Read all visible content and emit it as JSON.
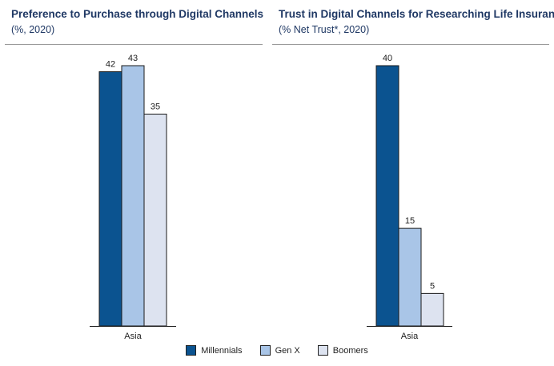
{
  "colors": {
    "millennials": "#0b5390",
    "gen_x": "#a9c5e7",
    "boomers": "#dde3f0",
    "title": "#1f3864"
  },
  "legend": {
    "items": [
      {
        "label": "Millennials",
        "color": "#0b5390"
      },
      {
        "label": "Gen X",
        "color": "#a9c5e7"
      },
      {
        "label": "Boomers",
        "color": "#dde3f0"
      }
    ]
  },
  "chart_data": [
    {
      "type": "bar",
      "title": "Preference to Purchase through Digital Channels",
      "subtitle": "(%, 2020)",
      "categories": [
        "Asia"
      ],
      "series": [
        {
          "name": "Millennials",
          "values": [
            42
          ]
        },
        {
          "name": "Gen X",
          "values": [
            43
          ]
        },
        {
          "name": "Boomers",
          "values": [
            35
          ]
        }
      ],
      "ylim": [
        0,
        43
      ]
    },
    {
      "type": "bar",
      "title": "Trust in Digital Channels for Researching Life Insurance",
      "subtitle": "(% Net Trust*, 2020)",
      "categories": [
        "Asia"
      ],
      "series": [
        {
          "name": "Millennials",
          "values": [
            40
          ]
        },
        {
          "name": "Gen X",
          "values": [
            15
          ]
        },
        {
          "name": "Boomers",
          "values": [
            5
          ]
        }
      ],
      "ylim": [
        0,
        40
      ]
    }
  ]
}
